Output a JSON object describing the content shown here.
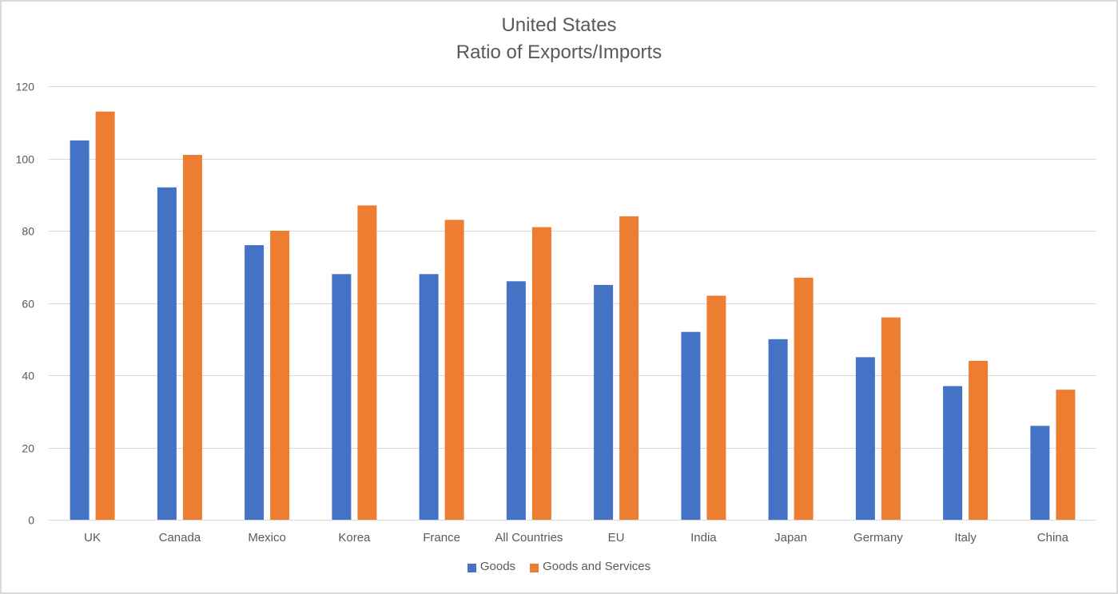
{
  "chart_data": {
    "type": "bar",
    "title": "United States",
    "subtitle": "Ratio of Exports/Imports",
    "xlabel": "",
    "ylabel": "",
    "ylim": [
      0,
      120
    ],
    "yticks": [
      0,
      20,
      40,
      60,
      80,
      100,
      120
    ],
    "grid": true,
    "legend_position": "bottom",
    "categories": [
      "UK",
      "Canada",
      "Mexico",
      "Korea",
      "France",
      "All Countries",
      "EU",
      "India",
      "Japan",
      "Germany",
      "Italy",
      "China"
    ],
    "series": [
      {
        "name": "Goods",
        "color": "#4472c4",
        "values": [
          105,
          92,
          76,
          68,
          68,
          66,
          65,
          52,
          50,
          45,
          37,
          26
        ]
      },
      {
        "name": "Goods and Services",
        "color": "#ed7d31",
        "values": [
          113,
          101,
          80,
          87,
          83,
          81,
          84,
          62,
          67,
          56,
          44,
          36
        ]
      }
    ]
  },
  "colors": {
    "gridline": "#d9d9d9",
    "text": "#595959",
    "border": "#d9d9d9"
  }
}
